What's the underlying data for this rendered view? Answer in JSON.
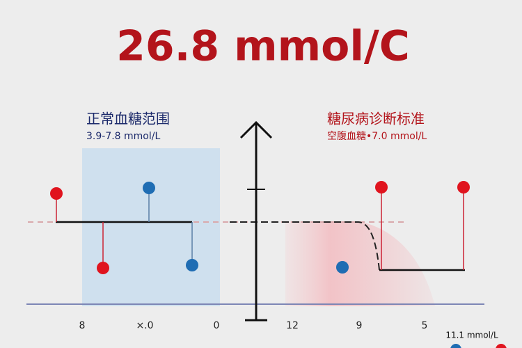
{
  "title": "26.8 mmol/C",
  "normal_range": {
    "heading": "正常血糖范围",
    "range": "3.9-7.8 mmol/L"
  },
  "diagnosis": {
    "heading": "糖尿病诊断标准",
    "criterion": "空腹血糖•7.0 mmol/L"
  },
  "axis_labels": [
    "8",
    "×.0",
    "0",
    "12",
    "9",
    "5"
  ],
  "threshold_label": "11.1 mmol/L"
}
